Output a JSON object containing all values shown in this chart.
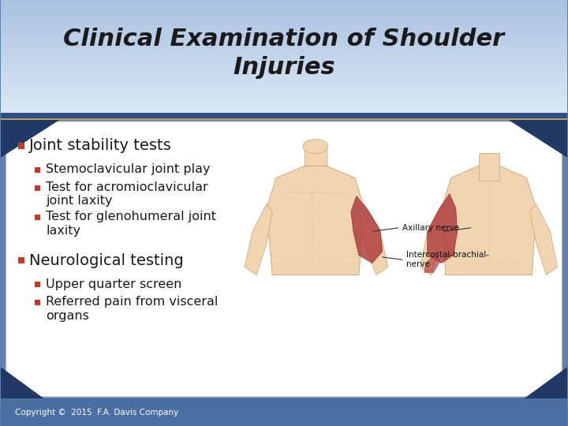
{
  "title_line1": "Clinical Examination of Shoulder",
  "title_line2": "Injuries",
  "title_color": "#1a1a1a",
  "header_bg_light": "#dce9f5",
  "header_bg_mid": "#a8c0e0",
  "header_accent_dark": "#2e4d8a",
  "header_accent_gold": "#b8a050",
  "content_bg": "#f8f8f8",
  "content_border": "#cccccc",
  "bullet_color": "#c0392b",
  "text_color": "#1a1a1a",
  "footer_bg": "#4a6fa0",
  "footer_dark": "#1f3864",
  "side_dark": "#1f3864",
  "copyright": "Copyright ©  2015  F.A. Davis Company",
  "bullet1": "Joint stability tests",
  "sub_bullets1": [
    "Stemoclavicular joint play",
    "Test for acromioclavicular\njoint laxity",
    "Test for glenohumeral joint\nlaxity"
  ],
  "bullet2": "Neurological testing",
  "sub_bullets2": [
    "Upper quarter screen",
    "Referred pain from visceral\norgans"
  ],
  "skin_color": "#f0d5b0",
  "muscle_color": "#b04040",
  "muscle_edge": "#8b2020",
  "body_edge": "#c8a070"
}
